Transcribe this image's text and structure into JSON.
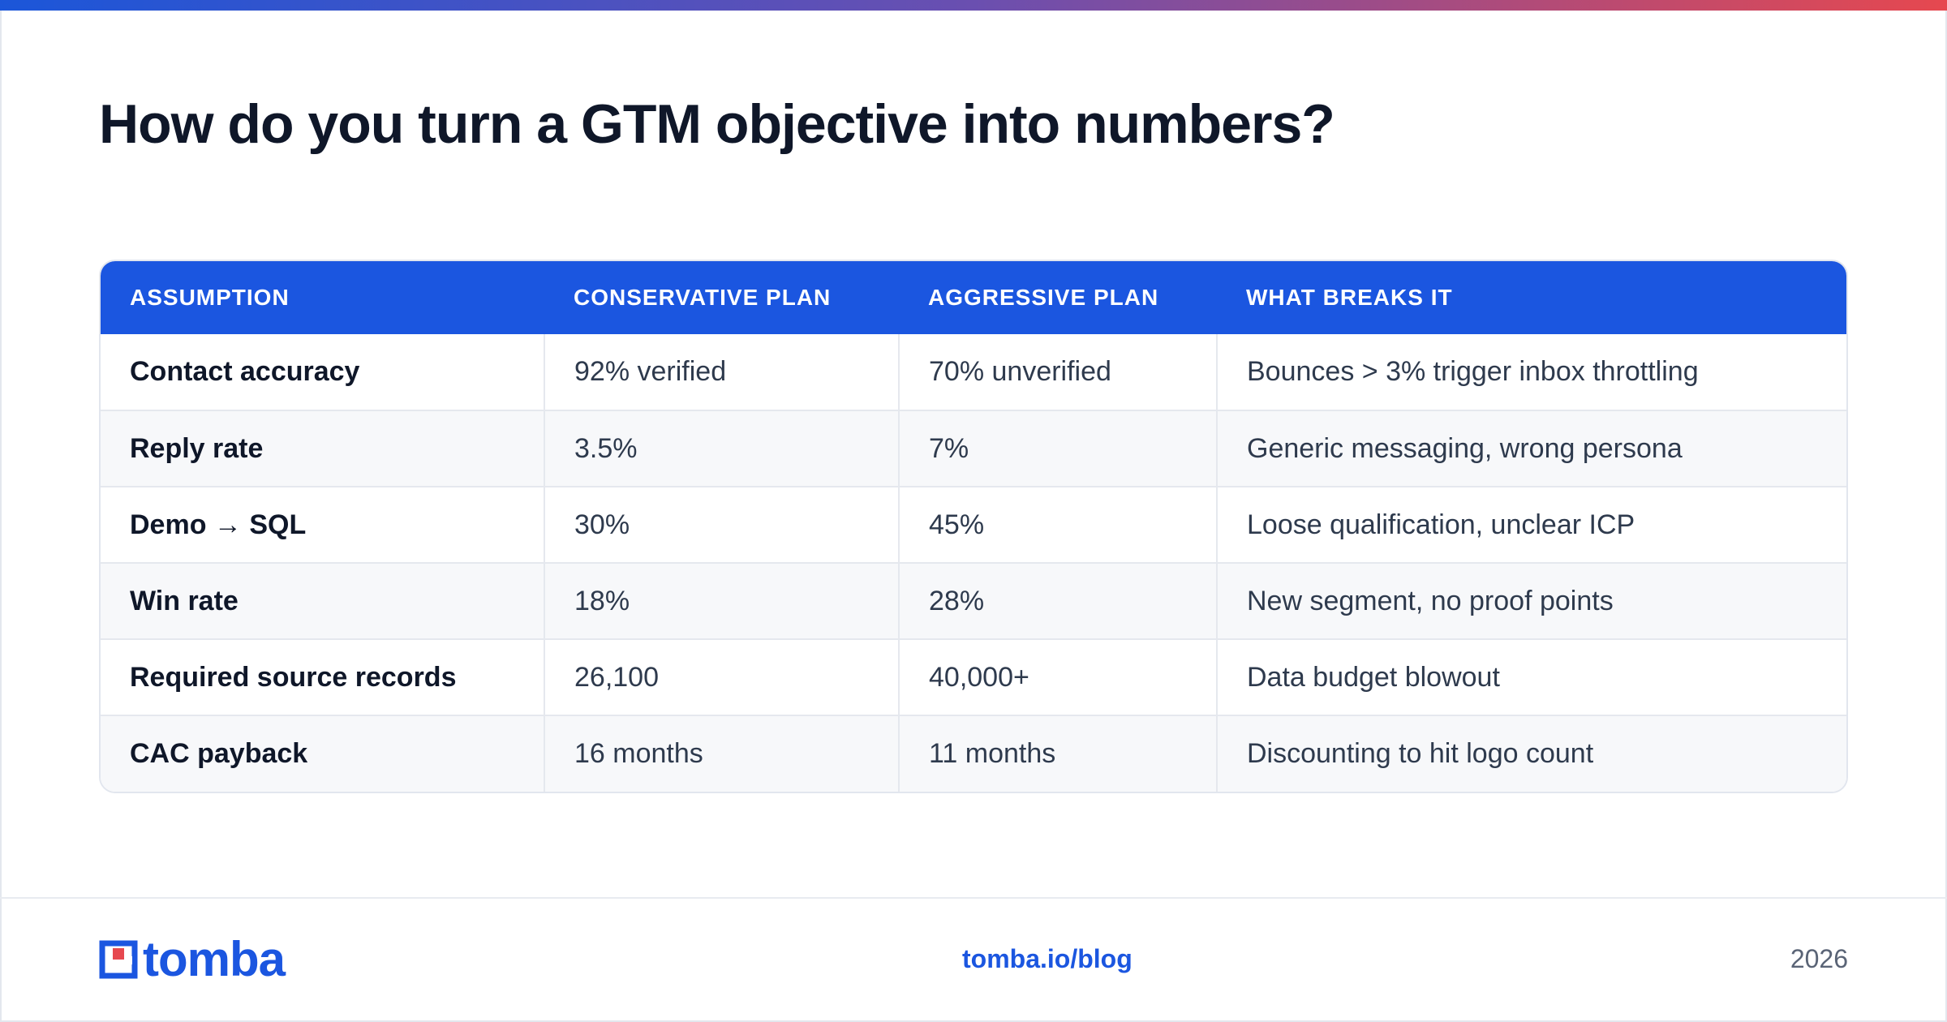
{
  "title": "How do you turn a GTM objective into numbers?",
  "table": {
    "headers": [
      "ASSUMPTION",
      "CONSERVATIVE PLAN",
      "AGGRESSIVE PLAN",
      "WHAT BREAKS IT"
    ],
    "rows": [
      [
        "Contact accuracy",
        "92% verified",
        "70% unverified",
        "Bounces > 3% trigger inbox throttling"
      ],
      [
        "Reply rate",
        "3.5%",
        "7%",
        "Generic messaging, wrong persona"
      ],
      [
        "Demo → SQL",
        "30%",
        "45%",
        "Loose qualification, unclear ICP"
      ],
      [
        "Win rate",
        "18%",
        "28%",
        "New segment, no proof points"
      ],
      [
        "Required source records",
        "26,100",
        "40,000+",
        "Data budget blowout"
      ],
      [
        "CAC payback",
        "16 months",
        "11 months",
        "Discounting to hit logo count"
      ]
    ]
  },
  "footer": {
    "logo_text": "tomba",
    "url": "tomba.io/blog",
    "year": "2026"
  },
  "colors": {
    "brand_blue": "#1b56e0",
    "brand_red": "#e6484f",
    "title": "#0f1729"
  }
}
